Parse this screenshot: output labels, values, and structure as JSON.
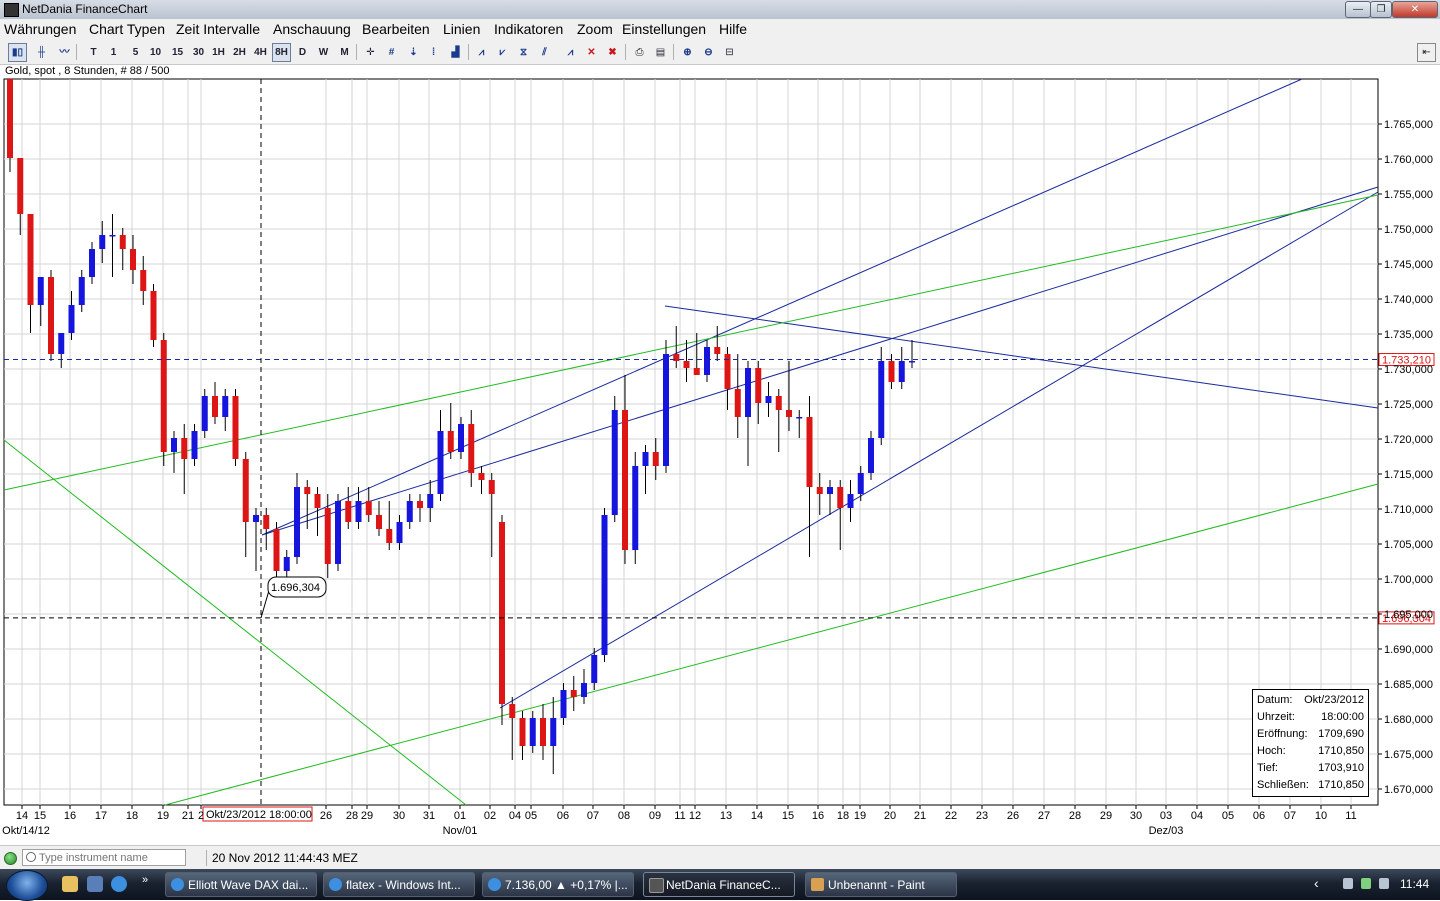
{
  "window": {
    "title": "NetDania FinanceChart",
    "minimize_glyph": "—",
    "maximize_glyph": "❐",
    "close_glyph": "✕"
  },
  "menu": [
    "Währungen",
    "Chart Typen",
    "Zeit Intervalle",
    "Anschauung",
    "Bearbeiten",
    "Linien",
    "Indikatoren",
    "Zoom",
    "Einstellungen",
    "Hilfe"
  ],
  "toolbar": {
    "interval_buttons": [
      "T",
      "1",
      "5",
      "10",
      "15",
      "30",
      "1H",
      "2H",
      "4H",
      "8H",
      "D",
      "W",
      "M"
    ],
    "active_interval": "8H"
  },
  "chart_info": "Gold, spot , 8 Stunden, # 88 / 500",
  "chart_data": {
    "type": "candlestick",
    "instrument": "Gold, spot",
    "interval": "8 Stunden",
    "y_ticks": [
      "1.765,000",
      "1.760,000",
      "1.755,000",
      "1.750,000",
      "1.745,000",
      "1.740,000",
      "1.735,000",
      "1.730,000",
      "1.725,000",
      "1.720,000",
      "1.715,000",
      "1.710,000",
      "1.705,000",
      "1.700,000",
      "1.695,000",
      "1.690,000",
      "1.685,000",
      "1.680,000",
      "1.675,000",
      "1.670,000"
    ],
    "ylim": [
      1667,
      1774
    ],
    "x_ticks": [
      "14",
      "15",
      "16",
      "17",
      "18",
      "19",
      "21",
      "2",
      "26",
      "28",
      "29",
      "30",
      "31",
      "01",
      "02",
      "04",
      "05",
      "06",
      "07",
      "08",
      "09",
      "11",
      "12",
      "13",
      "14",
      "15",
      "16",
      "18",
      "19",
      "20",
      "21",
      "22",
      "23",
      "26",
      "27",
      "28",
      "29",
      "30",
      "03",
      "04",
      "05",
      "06",
      "07",
      "10",
      "11"
    ],
    "x_sub_labels": [
      "Okt/14/12",
      "Nov/01",
      "Dez/03"
    ],
    "current_price": "1.733,210",
    "crosshair_price": "1.696,304",
    "crosshair_date": "Okt/23/2012 18:00:00",
    "marker_low_label": "1.696,304",
    "candles": [
      {
        "o": 1776,
        "h": 1776,
        "l": 1760,
        "c": 1762
      },
      {
        "o": 1762,
        "h": 1762,
        "l": 1751,
        "c": 1754
      },
      {
        "o": 1754,
        "h": 1754,
        "l": 1737,
        "c": 1741
      },
      {
        "o": 1741,
        "h": 1745,
        "l": 1738,
        "c": 1745
      },
      {
        "o": 1745,
        "h": 1746,
        "l": 1733,
        "c": 1734
      },
      {
        "o": 1734,
        "h": 1737,
        "l": 1732,
        "c": 1737
      },
      {
        "o": 1737,
        "h": 1743,
        "l": 1736,
        "c": 1741
      },
      {
        "o": 1741,
        "h": 1746,
        "l": 1740,
        "c": 1745
      },
      {
        "o": 1745,
        "h": 1750,
        "l": 1744,
        "c": 1749
      },
      {
        "o": 1749,
        "h": 1753,
        "l": 1747,
        "c": 1751
      },
      {
        "o": 1751,
        "h": 1754,
        "l": 1745,
        "c": 1751
      },
      {
        "o": 1751,
        "h": 1752,
        "l": 1746,
        "c": 1749
      },
      {
        "o": 1749,
        "h": 1751,
        "l": 1744,
        "c": 1746
      },
      {
        "o": 1746,
        "h": 1748,
        "l": 1741,
        "c": 1743
      },
      {
        "o": 1743,
        "h": 1744,
        "l": 1735,
        "c": 1736
      },
      {
        "o": 1736,
        "h": 1737,
        "l": 1718,
        "c": 1720
      },
      {
        "o": 1720,
        "h": 1723,
        "l": 1717,
        "c": 1722
      },
      {
        "o": 1722,
        "h": 1724,
        "l": 1714,
        "c": 1719
      },
      {
        "o": 1719,
        "h": 1724,
        "l": 1718,
        "c": 1723
      },
      {
        "o": 1723,
        "h": 1729,
        "l": 1722,
        "c": 1728
      },
      {
        "o": 1728,
        "h": 1730,
        "l": 1724,
        "c": 1725
      },
      {
        "o": 1725,
        "h": 1729,
        "l": 1723,
        "c": 1728
      },
      {
        "o": 1728,
        "h": 1729,
        "l": 1718,
        "c": 1719
      },
      {
        "o": 1719,
        "h": 1720,
        "l": 1705,
        "c": 1710
      },
      {
        "o": 1710,
        "h": 1712,
        "l": 1703,
        "c": 1711
      },
      {
        "o": 1711,
        "h": 1712,
        "l": 1706,
        "c": 1709
      },
      {
        "o": 1709,
        "h": 1710,
        "l": 1702,
        "c": 1703
      },
      {
        "o": 1703,
        "h": 1706,
        "l": 1701,
        "c": 1705
      },
      {
        "o": 1705,
        "h": 1717,
        "l": 1704,
        "c": 1715
      },
      {
        "o": 1715,
        "h": 1716,
        "l": 1709,
        "c": 1714
      },
      {
        "o": 1714,
        "h": 1715,
        "l": 1708,
        "c": 1712
      },
      {
        "o": 1712,
        "h": 1714,
        "l": 1702,
        "c": 1704
      },
      {
        "o": 1704,
        "h": 1714,
        "l": 1703,
        "c": 1713
      },
      {
        "o": 1713,
        "h": 1715,
        "l": 1709,
        "c": 1710
      },
      {
        "o": 1710,
        "h": 1715,
        "l": 1709,
        "c": 1713
      },
      {
        "o": 1713,
        "h": 1715,
        "l": 1710,
        "c": 1711
      },
      {
        "o": 1711,
        "h": 1713,
        "l": 1708,
        "c": 1709
      },
      {
        "o": 1709,
        "h": 1713,
        "l": 1706,
        "c": 1707
      },
      {
        "o": 1707,
        "h": 1711,
        "l": 1706,
        "c": 1710
      },
      {
        "o": 1710,
        "h": 1714,
        "l": 1709,
        "c": 1713
      },
      {
        "o": 1713,
        "h": 1714,
        "l": 1710,
        "c": 1712
      },
      {
        "o": 1712,
        "h": 1716,
        "l": 1710,
        "c": 1714
      },
      {
        "o": 1714,
        "h": 1726,
        "l": 1713,
        "c": 1723
      },
      {
        "o": 1723,
        "h": 1727,
        "l": 1719,
        "c": 1720
      },
      {
        "o": 1720,
        "h": 1725,
        "l": 1719,
        "c": 1724
      },
      {
        "o": 1724,
        "h": 1726,
        "l": 1715,
        "c": 1717
      },
      {
        "o": 1717,
        "h": 1718,
        "l": 1714,
        "c": 1716
      },
      {
        "o": 1716,
        "h": 1717,
        "l": 1705,
        "c": 1714
      },
      {
        "o": 1710,
        "h": 1711,
        "l": 1681,
        "c": 1684
      },
      {
        "o": 1684,
        "h": 1685,
        "l": 1676,
        "c": 1682
      },
      {
        "o": 1682,
        "h": 1683,
        "l": 1676,
        "c": 1678
      },
      {
        "o": 1678,
        "h": 1683,
        "l": 1677,
        "c": 1682
      },
      {
        "o": 1682,
        "h": 1684,
        "l": 1676,
        "c": 1678
      },
      {
        "o": 1678,
        "h": 1685,
        "l": 1674,
        "c": 1682
      },
      {
        "o": 1682,
        "h": 1687,
        "l": 1681,
        "c": 1686
      },
      {
        "o": 1686,
        "h": 1688,
        "l": 1683,
        "c": 1685
      },
      {
        "o": 1685,
        "h": 1689,
        "l": 1684,
        "c": 1687
      },
      {
        "o": 1687,
        "h": 1692,
        "l": 1686,
        "c": 1691
      },
      {
        "o": 1691,
        "h": 1712,
        "l": 1690,
        "c": 1711
      },
      {
        "o": 1711,
        "h": 1728,
        "l": 1710,
        "c": 1726
      },
      {
        "o": 1726,
        "h": 1731,
        "l": 1704,
        "c": 1706
      },
      {
        "o": 1706,
        "h": 1720,
        "l": 1704,
        "c": 1718
      },
      {
        "o": 1718,
        "h": 1721,
        "l": 1714,
        "c": 1720
      },
      {
        "o": 1720,
        "h": 1722,
        "l": 1716,
        "c": 1718
      },
      {
        "o": 1718,
        "h": 1736,
        "l": 1717,
        "c": 1734
      },
      {
        "o": 1734,
        "h": 1738,
        "l": 1732,
        "c": 1733
      },
      {
        "o": 1733,
        "h": 1736,
        "l": 1730,
        "c": 1732
      },
      {
        "o": 1732,
        "h": 1737,
        "l": 1731,
        "c": 1731
      },
      {
        "o": 1731,
        "h": 1736,
        "l": 1730,
        "c": 1735
      },
      {
        "o": 1735,
        "h": 1738,
        "l": 1733,
        "c": 1734
      },
      {
        "o": 1734,
        "h": 1735,
        "l": 1726,
        "c": 1729
      },
      {
        "o": 1729,
        "h": 1734,
        "l": 1722,
        "c": 1725
      },
      {
        "o": 1725,
        "h": 1733,
        "l": 1718,
        "c": 1732
      },
      {
        "o": 1732,
        "h": 1733,
        "l": 1724,
        "c": 1727
      },
      {
        "o": 1727,
        "h": 1730,
        "l": 1725,
        "c": 1728
      },
      {
        "o": 1728,
        "h": 1729,
        "l": 1720,
        "c": 1726
      },
      {
        "o": 1726,
        "h": 1733,
        "l": 1723,
        "c": 1725
      },
      {
        "o": 1725,
        "h": 1726,
        "l": 1722,
        "c": 1725
      },
      {
        "o": 1725,
        "h": 1728,
        "l": 1705,
        "c": 1715
      },
      {
        "o": 1715,
        "h": 1717,
        "l": 1711,
        "c": 1714
      },
      {
        "o": 1714,
        "h": 1716,
        "l": 1711,
        "c": 1715
      },
      {
        "o": 1715,
        "h": 1716,
        "l": 1706,
        "c": 1712
      },
      {
        "o": 1712,
        "h": 1716,
        "l": 1710,
        "c": 1714
      },
      {
        "o": 1714,
        "h": 1718,
        "l": 1713,
        "c": 1717
      },
      {
        "o": 1717,
        "h": 1723,
        "l": 1716,
        "c": 1722
      },
      {
        "o": 1722,
        "h": 1735,
        "l": 1721,
        "c": 1733
      },
      {
        "o": 1733,
        "h": 1734,
        "l": 1729,
        "c": 1730
      },
      {
        "o": 1730,
        "h": 1735,
        "l": 1729,
        "c": 1733
      },
      {
        "o": 1733,
        "h": 1736,
        "l": 1732,
        "c": 1733
      }
    ],
    "colors": {
      "up": "#1515dd",
      "down": "#dd1515",
      "blue_line": "#1a2a9c",
      "green_line": "#22bb22",
      "grid": "#d4d4d4"
    }
  },
  "info_box": {
    "rows": [
      {
        "label": "Datum:",
        "value": "Okt/23/2012"
      },
      {
        "label": "Uhrzeit:",
        "value": "18:00:00"
      },
      {
        "label": "Eröffnung:",
        "value": "1709,690"
      },
      {
        "label": "Hoch:",
        "value": "1710,850"
      },
      {
        "label": "Tief:",
        "value": "1703,910"
      },
      {
        "label": "Schließen:",
        "value": "1710,850"
      }
    ]
  },
  "status": {
    "search_placeholder": "Type instrument name",
    "datetime": "20 Nov 2012 11:44:43 MEZ"
  },
  "taskbar": {
    "tasks": [
      "Elliott Wave DAX dai...",
      "flatex - Windows Int...",
      "7.136,00 ▲ +0,17% |...",
      "NetDania FinanceC...",
      "Unbenannt - Paint"
    ],
    "active_task": "NetDania FinanceC...",
    "clock": "11:44",
    "tray_chevron": "‹"
  }
}
